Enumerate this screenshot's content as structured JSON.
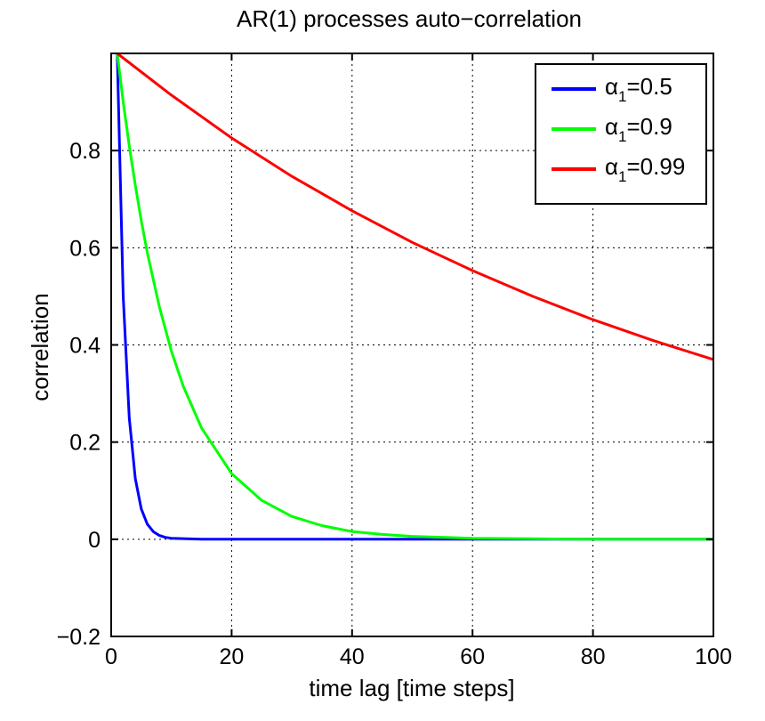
{
  "chart_data": {
    "type": "line",
    "title": "AR(1) processes auto−correlation",
    "xlabel": "time lag [time steps]",
    "ylabel": "correlation",
    "xlim": [
      0,
      100
    ],
    "ylim": [
      -0.2,
      1.0
    ],
    "grid": true,
    "legend_position": "top-right",
    "x_ticks": [
      0,
      20,
      40,
      60,
      80,
      100
    ],
    "x_tick_labels": [
      "0",
      "20",
      "40",
      "60",
      "80",
      "100"
    ],
    "y_ticks": [
      -0.2,
      0,
      0.2,
      0.4,
      0.6,
      0.8
    ],
    "y_tick_labels": [
      "−0.2",
      "0",
      "0.2",
      "0.4",
      "0.6",
      "0.8"
    ],
    "series": [
      {
        "name": "α₁=0.5",
        "legend_base": "α",
        "legend_sub": "1",
        "legend_value": "=0.5",
        "color": "#0000ff",
        "x": [
          1,
          2,
          3,
          4,
          5,
          6,
          7,
          8,
          9,
          10,
          15,
          20,
          30,
          40,
          50,
          60,
          70,
          80,
          90,
          100
        ],
        "y": [
          1.0,
          0.5,
          0.25,
          0.125,
          0.0625,
          0.03125,
          0.0156,
          0.0078,
          0.0039,
          0.002,
          0.0001,
          0.0,
          0.0,
          0.0,
          0.0,
          0.0,
          0.0,
          0.0,
          0.0,
          0.0
        ]
      },
      {
        "name": "α₁=0.9",
        "legend_base": "α",
        "legend_sub": "1",
        "legend_value": "=0.9",
        "color": "#00ff00",
        "x": [
          1,
          2,
          3,
          4,
          5,
          6,
          8,
          10,
          12,
          15,
          20,
          25,
          30,
          35,
          40,
          45,
          50,
          60,
          70,
          80,
          90,
          100
        ],
        "y": [
          1.0,
          0.9,
          0.81,
          0.729,
          0.656,
          0.59,
          0.478,
          0.387,
          0.314,
          0.229,
          0.135,
          0.08,
          0.047,
          0.028,
          0.016,
          0.01,
          0.006,
          0.002,
          0.001,
          0.0,
          0.0,
          0.0
        ]
      },
      {
        "name": "α₁=0.99",
        "legend_base": "α",
        "legend_sub": "1",
        "legend_value": "=0.99",
        "color": "#ff0000",
        "x": [
          1,
          10,
          20,
          30,
          40,
          50,
          60,
          70,
          80,
          90,
          100
        ],
        "y": [
          1.0,
          0.914,
          0.826,
          0.747,
          0.676,
          0.611,
          0.553,
          0.5,
          0.452,
          0.409,
          0.37
        ]
      }
    ]
  }
}
